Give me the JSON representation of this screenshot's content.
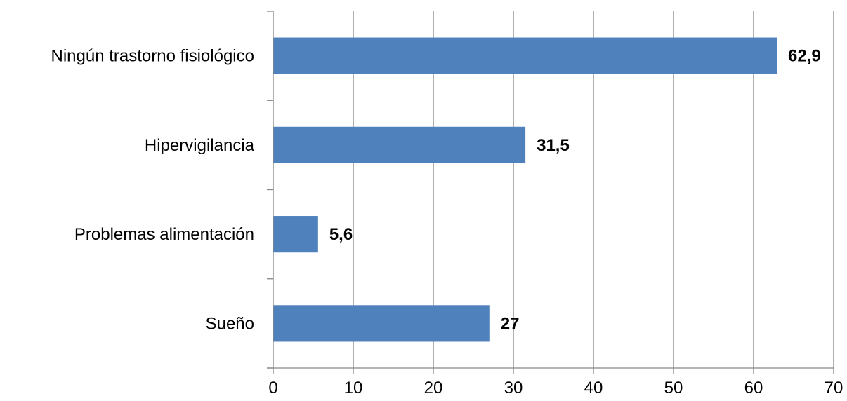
{
  "chart_data": {
    "type": "bar",
    "orientation": "horizontal",
    "title": "",
    "xlabel": "",
    "ylabel": "",
    "categories": [
      "Ningún trastorno fisiológico",
      "Hipervigilancia",
      "Problemas alimentación",
      "Sueño"
    ],
    "values": [
      62.9,
      31.5,
      5.6,
      27
    ],
    "data_labels": [
      "62,9",
      "31,5",
      "5,6",
      "27"
    ],
    "xlim": [
      0,
      70
    ],
    "x_ticks": [
      0,
      10,
      20,
      30,
      40,
      50,
      60,
      70
    ],
    "x_tick_labels": [
      "0",
      "10",
      "20",
      "30",
      "40",
      "50",
      "60",
      "70"
    ],
    "grid": "vertical",
    "legend": "none",
    "colors": {
      "bar": "#4F81BD",
      "grid": "#868686",
      "axis": "#868686",
      "text": "#000000"
    }
  }
}
